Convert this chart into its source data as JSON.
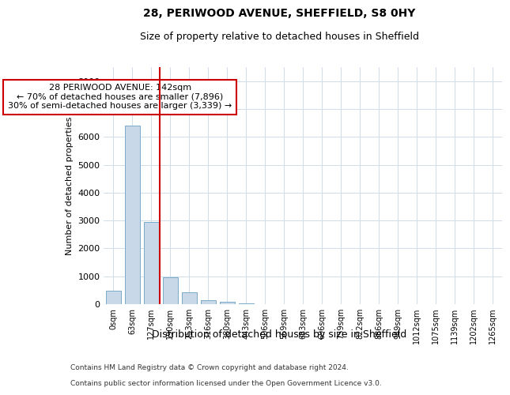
{
  "title1": "28, PERIWOOD AVENUE, SHEFFIELD, S8 0HY",
  "title2": "Size of property relative to detached houses in Sheffield",
  "xlabel": "Distribution of detached houses by size in Sheffield",
  "ylabel": "Number of detached properties",
  "bar_color": "#c8d8e8",
  "bar_edge_color": "#7aaac8",
  "categories": [
    "0sqm",
    "63sqm",
    "127sqm",
    "190sqm",
    "253sqm",
    "316sqm",
    "380sqm",
    "443sqm",
    "506sqm",
    "569sqm",
    "633sqm",
    "696sqm",
    "759sqm",
    "822sqm",
    "886sqm",
    "949sqm",
    "1012sqm",
    "1075sqm",
    "1139sqm",
    "1202sqm",
    "1265sqm"
  ],
  "values": [
    480,
    6400,
    2950,
    960,
    430,
    155,
    80,
    35,
    10,
    0,
    0,
    0,
    0,
    0,
    0,
    0,
    0,
    0,
    0,
    0,
    0
  ],
  "ylim": [
    0,
    8500
  ],
  "yticks": [
    0,
    1000,
    2000,
    3000,
    4000,
    5000,
    6000,
    7000,
    8000
  ],
  "vline_x": 2.45,
  "vline_color": "#cc0000",
  "annotation_text": "28 PERIWOOD AVENUE: 142sqm\n← 70% of detached houses are smaller (7,896)\n30% of semi-detached houses are larger (3,339) →",
  "annotation_box_color": "#cc0000",
  "footer1": "Contains HM Land Registry data © Crown copyright and database right 2024.",
  "footer2": "Contains public sector information licensed under the Open Government Licence v3.0.",
  "bg_color": "#ffffff",
  "grid_color": "#d0dce8",
  "title1_fontsize": 10,
  "title2_fontsize": 9
}
